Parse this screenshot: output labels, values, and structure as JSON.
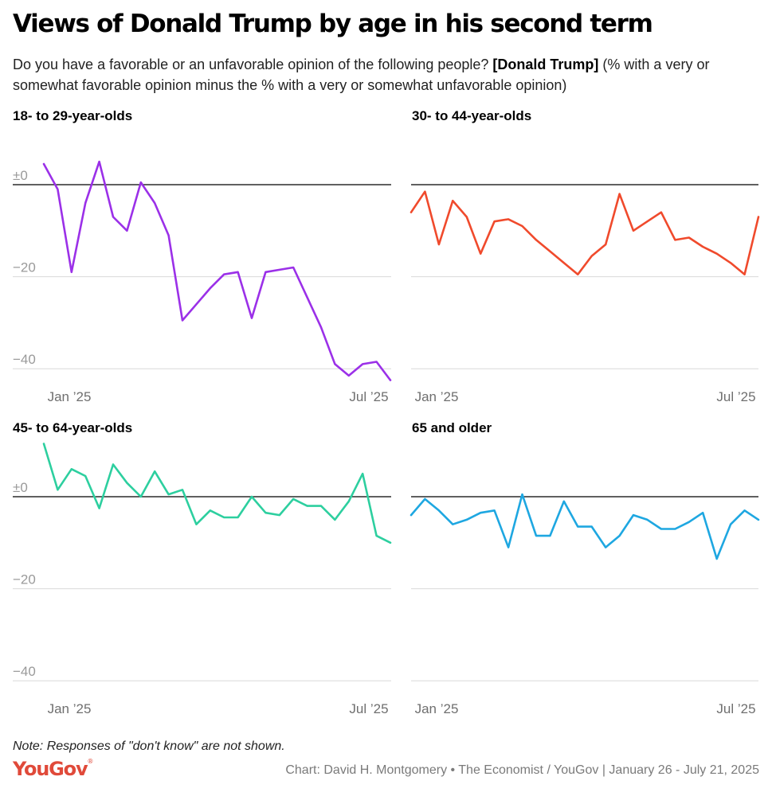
{
  "header": {
    "title": "Views of Donald Trump by age in his second term",
    "subtitle_pre": "Do you have a favorable or an unfavorable opinion of the following people? ",
    "subtitle_bold": "[Donald Trump]",
    "subtitle_post": " (% with a very or somewhat favorable opinion minus the % with a very or somewhat unfavorable opinion)"
  },
  "footer": {
    "note": "Note: Responses of \"don't know\" are not shown.",
    "logo": "YouGov",
    "logo_mark": "®",
    "credit": "Chart: David H. Montgomery • The Economist / YouGov | January 26 - July 21, 2025"
  },
  "colors": {
    "zero_line": "#000000",
    "grid": "#d9d9d9"
  },
  "chart_data": [
    {
      "type": "line",
      "title": "18- to 29-year-olds",
      "color": "#9b30e8",
      "y_ticks": [
        "±0",
        "−20",
        "−40"
      ],
      "y_tick_values": [
        0,
        -20,
        -40
      ],
      "x_ticks": [
        "Jan ’25",
        "Jul ’25"
      ],
      "ylim": [
        -43,
        5
      ],
      "values": [
        4.5,
        -1,
        -19,
        -4,
        5,
        -7,
        -10,
        0.5,
        -4,
        -11,
        -29.5,
        -26,
        -22.5,
        -19.5,
        -19,
        -29,
        -19,
        -18.5,
        -18,
        -24.5,
        -31,
        -39,
        -41.5,
        -39,
        -38.5,
        -42.5
      ]
    },
    {
      "type": "line",
      "title": "30- to 44-year-olds",
      "color": "#f04a2c",
      "y_ticks": [
        "±0",
        "−20",
        "−40"
      ],
      "y_tick_values": [
        0,
        -20,
        -40
      ],
      "x_ticks": [
        "Jan ’25",
        "Jul ’25"
      ],
      "ylim": [
        -43,
        5
      ],
      "values": [
        -6,
        -1.5,
        -13,
        -3.5,
        -7,
        -15,
        -8,
        -7.5,
        -9,
        -12,
        -14.5,
        -17,
        -19.5,
        -15.5,
        -13,
        -2,
        -10,
        -8,
        -6,
        -12,
        -11.5,
        -13.5,
        -15,
        -17,
        -19.5,
        -7
      ]
    },
    {
      "type": "line",
      "title": "45- to 64-year-olds",
      "color": "#2dcf9f",
      "y_ticks": [
        "±0",
        "−20",
        "−40"
      ],
      "y_tick_values": [
        0,
        -20,
        -40
      ],
      "x_ticks": [
        "Jan ’25",
        "Jul ’25"
      ],
      "ylim": [
        -43,
        12
      ],
      "values": [
        11.5,
        1.5,
        6,
        4.5,
        -2.5,
        7,
        3,
        0,
        5.5,
        0.5,
        1.5,
        -6,
        -3,
        -4.5,
        -4.5,
        0,
        -3.5,
        -4,
        -0.5,
        -2,
        -2,
        -5,
        -1,
        5,
        -8.5,
        -10
      ]
    },
    {
      "type": "line",
      "title": "65 and older",
      "color": "#1ea7e1",
      "y_ticks": [
        "±0",
        "−20",
        "−40"
      ],
      "y_tick_values": [
        0,
        -20,
        -40
      ],
      "x_ticks": [
        "Jan ’25",
        "Jul ’25"
      ],
      "ylim": [
        -43,
        12
      ],
      "values": [
        -4,
        -0.5,
        -3,
        -6,
        -5,
        -3.5,
        -3,
        -11,
        0.5,
        -8.5,
        -8.5,
        -1,
        -6.5,
        -6.5,
        -11,
        -8.5,
        -4,
        -5,
        -7,
        -7,
        -5.5,
        -3.5,
        -13.5,
        -6,
        -3,
        -5
      ]
    }
  ]
}
